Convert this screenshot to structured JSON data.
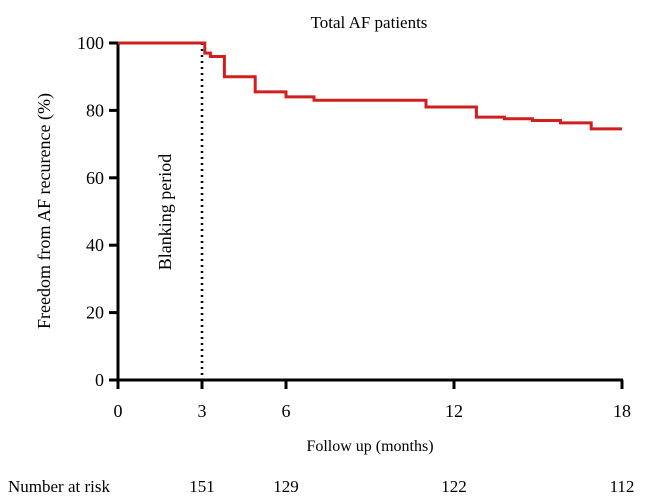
{
  "chart_data": {
    "type": "line",
    "title": "Total AF patients",
    "xlabel": "Follow up (months)",
    "ylabel": "Freedom from AF recurence (%)",
    "xlim": [
      0,
      18
    ],
    "ylim": [
      0,
      100
    ],
    "x_ticks": [
      0,
      3,
      6,
      12,
      18
    ],
    "y_ticks": [
      0,
      20,
      40,
      60,
      80,
      100
    ],
    "series": [
      {
        "step": true,
        "color": "#d11f1f",
        "points": [
          [
            0,
            100
          ],
          [
            3.1,
            100
          ],
          [
            3.1,
            97
          ],
          [
            3.3,
            97
          ],
          [
            3.3,
            96
          ],
          [
            3.8,
            96
          ],
          [
            3.8,
            90
          ],
          [
            4.9,
            90
          ],
          [
            4.9,
            85.5
          ],
          [
            6.0,
            85.5
          ],
          [
            6.0,
            84
          ],
          [
            7.0,
            84
          ],
          [
            7.0,
            83
          ],
          [
            11.0,
            83
          ],
          [
            11.0,
            81
          ],
          [
            12.8,
            81
          ],
          [
            12.8,
            78
          ],
          [
            13.8,
            78
          ],
          [
            13.8,
            77.5
          ],
          [
            14.8,
            77.5
          ],
          [
            14.8,
            77
          ],
          [
            15.8,
            77
          ],
          [
            15.8,
            76.3
          ],
          [
            16.9,
            76.3
          ],
          [
            16.9,
            74.5
          ],
          [
            18,
            74.5
          ]
        ]
      }
    ],
    "blanking": {
      "x": 3,
      "label": "Blanking period"
    },
    "number_at_risk": {
      "label": "Number at risk",
      "values": [
        {
          "x": 3,
          "n": "151"
        },
        {
          "x": 6,
          "n": "129"
        },
        {
          "x": 12,
          "n": "122"
        },
        {
          "x": 18,
          "n": "112"
        }
      ]
    },
    "grid": false,
    "legend": "none"
  }
}
